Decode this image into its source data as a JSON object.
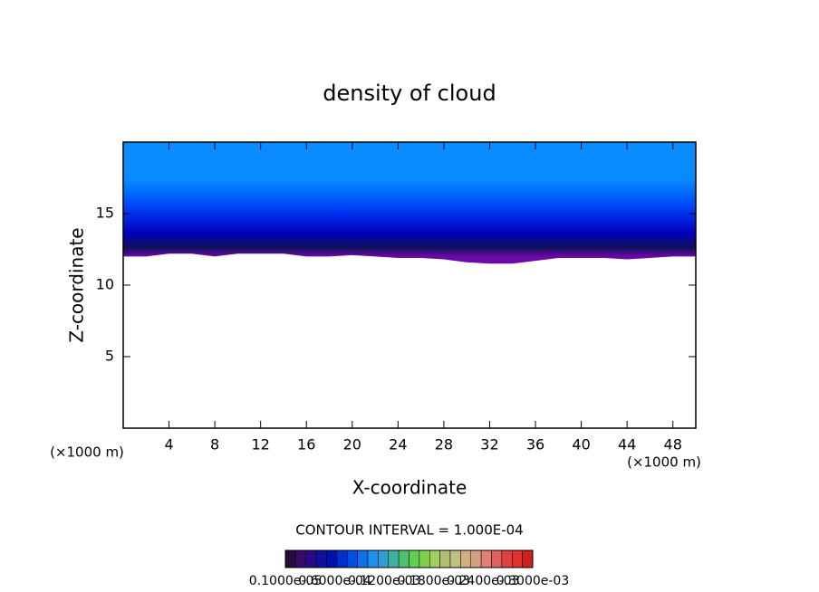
{
  "chart_data": {
    "type": "contour",
    "title": "density of cloud",
    "x_label": "X-coordinate",
    "y_label": "Z-coordinate",
    "x_unit": "(×1000 m)",
    "y_unit": "(×1000 m)",
    "annotation": "CONTOUR INTERVAL = 1.000E-04",
    "xlim": [
      0,
      50
    ],
    "ylim": [
      0,
      20
    ],
    "xticks": [
      4,
      8,
      12,
      16,
      20,
      24,
      28,
      32,
      36,
      40,
      44,
      48
    ],
    "yticks": [
      5,
      10,
      15
    ],
    "x": [
      0,
      2,
      4,
      6,
      8,
      10,
      12,
      14,
      16,
      18,
      20,
      22,
      24,
      26,
      28,
      30,
      32,
      34,
      36,
      38,
      40,
      42,
      44,
      46,
      48,
      50
    ],
    "cloud_base": [
      12.0,
      12.0,
      12.2,
      12.2,
      12.0,
      12.2,
      12.2,
      12.2,
      12.0,
      12.0,
      12.1,
      12.0,
      11.9,
      11.9,
      11.8,
      11.6,
      11.5,
      11.5,
      11.7,
      11.9,
      11.9,
      11.9,
      11.8,
      11.9,
      12.0,
      12.0
    ],
    "gradient": [
      {
        "z": 12,
        "color": "#6a0aa8"
      },
      {
        "z": 12.6,
        "color": "#12105a"
      },
      {
        "z": 13.6,
        "color": "#0000b8"
      },
      {
        "z": 15,
        "color": "#0030f0"
      },
      {
        "z": 16.4,
        "color": "#0068ff"
      },
      {
        "z": 17.5,
        "color": "#0a8cff"
      }
    ],
    "colorbar": {
      "colors": [
        "#2a0a3a",
        "#3a0a6a",
        "#2a0a8a",
        "#10109a",
        "#0010b0",
        "#0030d0",
        "#0050e0",
        "#1070f0",
        "#2090f0",
        "#30a0d0",
        "#40b0a0",
        "#50c070",
        "#60d050",
        "#80d050",
        "#a0d060",
        "#b0c070",
        "#c0c080",
        "#d0b080",
        "#d0a080",
        "#e08070",
        "#e06060",
        "#e04040",
        "#e03030",
        "#d02020"
      ],
      "labels": [
        "0.1000e-05",
        "0.6000e-04",
        "0.1200e-03",
        "0.1800e-03",
        "0.2400e-03",
        "0.3000e-03"
      ]
    }
  }
}
